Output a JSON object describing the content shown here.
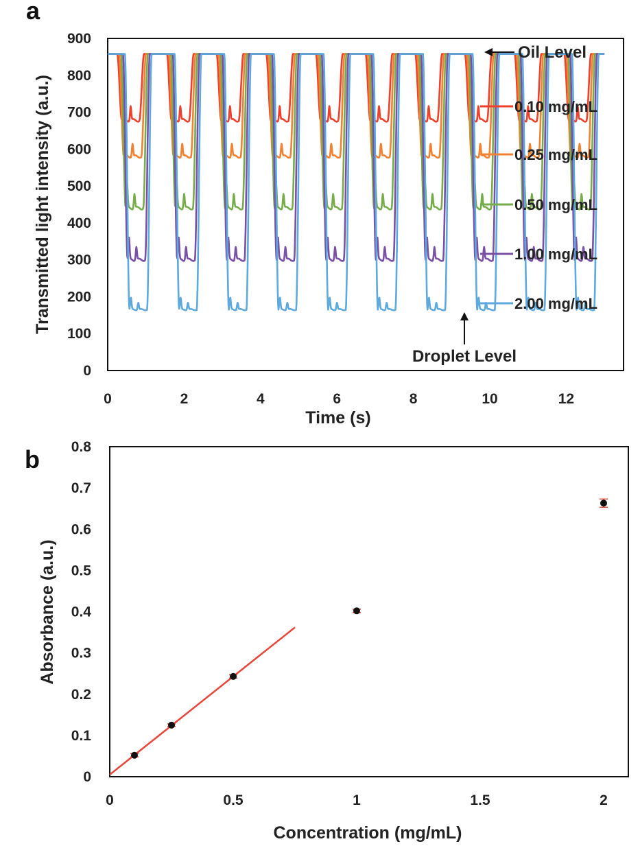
{
  "chart_data": [
    {
      "panel": "a",
      "type": "line",
      "xlabel": "Time (s)",
      "ylabel": "Transmitted light intensity (a.u.)",
      "xlim": [
        0,
        13.5
      ],
      "ylim": [
        0,
        900
      ],
      "xticks": [
        "0",
        "2",
        "4",
        "6",
        "8",
        "10",
        "12"
      ],
      "yticks": [
        "0",
        "100",
        "200",
        "300",
        "400",
        "500",
        "600",
        "700",
        "800",
        "900"
      ],
      "grid": false,
      "legend_position": "right",
      "oil_level": 858,
      "period_s": 1.3,
      "droplet_count": 10,
      "series": [
        {
          "name": "0.10 mg/mL",
          "color": "#f0402c",
          "droplet_level": 678,
          "peak": 750
        },
        {
          "name": "0.25 mg/mL",
          "color": "#f28232",
          "droplet_level": 580,
          "peak": 645
        },
        {
          "name": "0.50 mg/mL",
          "color": "#76ad4a",
          "droplet_level": 440,
          "peak": 512
        },
        {
          "name": "1.00 mg/mL",
          "color": "#7a4fa6",
          "droplet_level": 300,
          "peak": 365
        },
        {
          "name": "2.00 mg/mL",
          "color": "#5ea9de",
          "droplet_level": 165,
          "peak": 200
        }
      ],
      "annotations": {
        "oil": "Oil Level",
        "droplet": "Droplet Level"
      }
    },
    {
      "panel": "b",
      "type": "scatter",
      "xlabel": "Concentration (mg/mL)",
      "ylabel": "Absorbance (a.u.)",
      "xlim": [
        0,
        2.1
      ],
      "ylim": [
        0,
        0.8
      ],
      "xticks": [
        "0",
        "0.5",
        "1",
        "1.5",
        "2"
      ],
      "yticks": [
        "0",
        "0.1",
        "0.2",
        "0.3",
        "0.4",
        "0.5",
        "0.6",
        "0.7",
        "0.8"
      ],
      "grid": false,
      "points": [
        {
          "x": 0.1,
          "y": 0.052,
          "err": 0.004
        },
        {
          "x": 0.25,
          "y": 0.125,
          "err": 0.003
        },
        {
          "x": 0.5,
          "y": 0.243,
          "err": 0.004
        },
        {
          "x": 1.0,
          "y": 0.402,
          "err": 0.004
        },
        {
          "x": 2.0,
          "y": 0.663,
          "err": 0.01
        }
      ],
      "point_color": "#111111",
      "error_color": "#e8463a",
      "fit_line": {
        "x": [
          0,
          0.75
        ],
        "y": [
          0.005,
          0.362
        ],
        "color": "#e8463a"
      }
    }
  ],
  "labels": {
    "panel_a": "a",
    "panel_b": "b"
  }
}
